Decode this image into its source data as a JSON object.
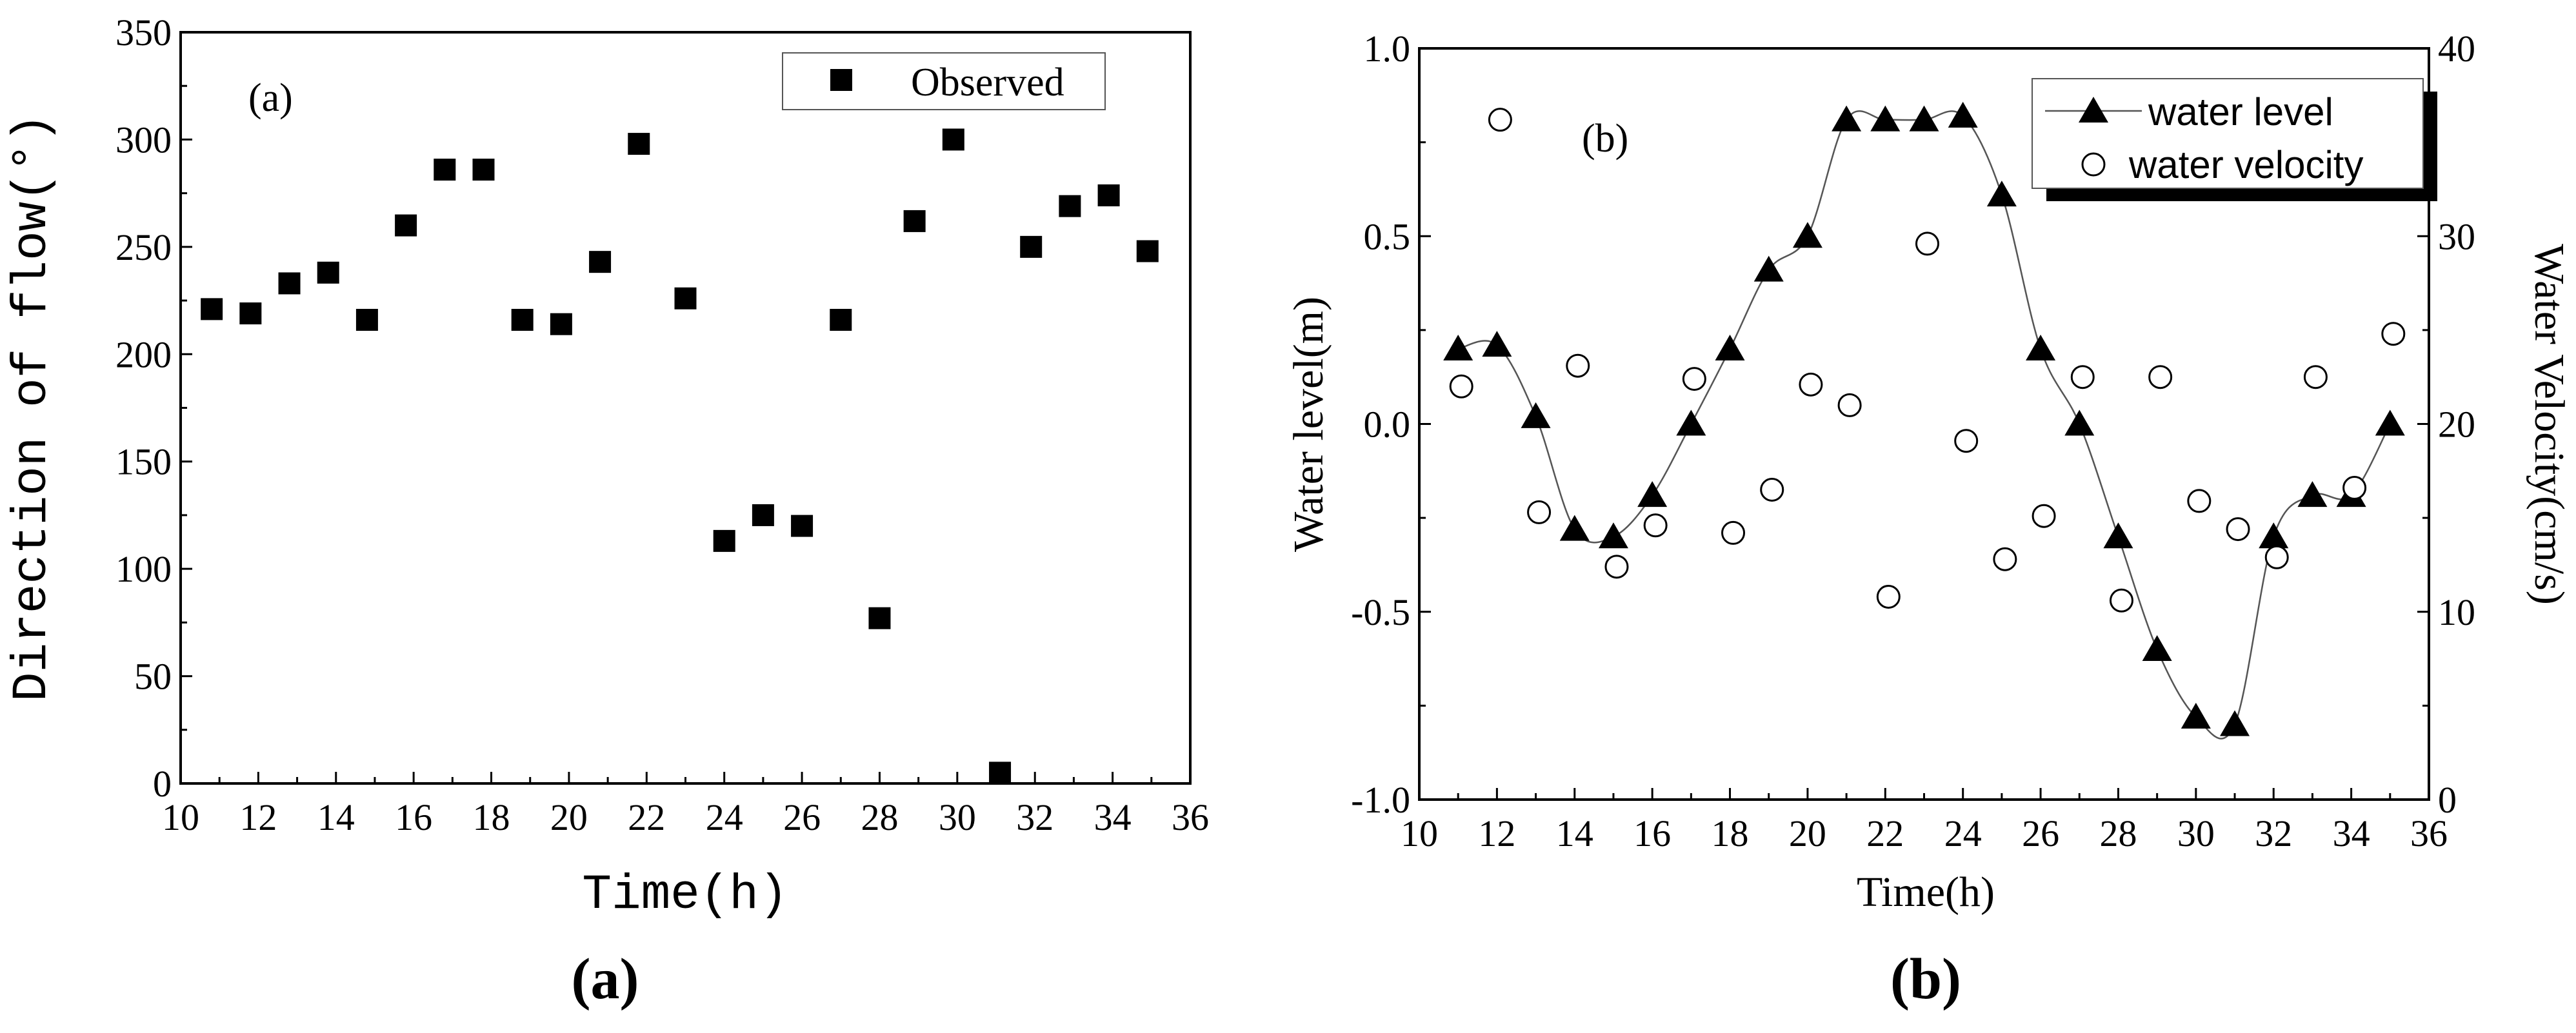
{
  "chart_data": [
    {
      "type": "scatter",
      "panel_label": "(a)",
      "caption": "(a)",
      "xlabel": "Time(h)",
      "ylabel": "Direction of flow(°)",
      "xlim": [
        10,
        36
      ],
      "ylim": [
        0,
        350
      ],
      "xticks": [
        "10",
        "12",
        "14",
        "16",
        "18",
        "20",
        "22",
        "24",
        "26",
        "28",
        "30",
        "32",
        "34",
        "36"
      ],
      "yticks": [
        "0",
        "50",
        "100",
        "150",
        "200",
        "250",
        "300",
        "350"
      ],
      "legend": "top-right",
      "series": [
        {
          "name": "Observed",
          "marker": "filled-square",
          "x": [
            10.8,
            11.8,
            12.8,
            13.8,
            14.8,
            15.8,
            16.8,
            17.8,
            18.8,
            19.8,
            20.8,
            21.8,
            23.0,
            24.0,
            25.0,
            26.0,
            27.0,
            28.0,
            28.9,
            29.9,
            31.1,
            31.9,
            32.9,
            33.9,
            34.9
          ],
          "y": [
            221,
            219,
            233,
            238,
            216,
            260,
            286,
            286,
            216,
            214,
            243,
            298,
            226,
            113,
            125,
            120,
            216,
            77,
            262,
            300,
            5,
            250,
            269,
            274,
            248
          ]
        }
      ]
    },
    {
      "type": "line",
      "panel_label": "(b)",
      "caption": "(b)",
      "xlabel": "Time(h)",
      "ylabel": "Water level(m)",
      "y2label": "Water Velocity(cm/s)",
      "xlim": [
        10,
        36
      ],
      "ylim": [
        -1.0,
        1.0
      ],
      "y2lim": [
        0,
        40
      ],
      "xticks": [
        "10",
        "12",
        "14",
        "16",
        "18",
        "20",
        "22",
        "24",
        "26",
        "28",
        "30",
        "32",
        "34",
        "36"
      ],
      "yticks": [
        "-1.0",
        "-0.5",
        "0.0",
        "0.5",
        "1.0"
      ],
      "y2ticks": [
        "0",
        "10",
        "20",
        "30",
        "40"
      ],
      "legend": "top-right",
      "series": [
        {
          "name": "water level",
          "marker": "filled-triangle",
          "axis": "left",
          "x": [
            11,
            12,
            13,
            14,
            15,
            16,
            17,
            18,
            19,
            20,
            21,
            22,
            23,
            24,
            25,
            26,
            27,
            28,
            29,
            30,
            31,
            32,
            33,
            34,
            35
          ],
          "y": [
            0.2,
            0.21,
            0.02,
            -0.28,
            -0.3,
            -0.19,
            0.0,
            0.2,
            0.41,
            0.5,
            0.81,
            0.81,
            0.81,
            0.82,
            0.61,
            0.2,
            0.0,
            -0.3,
            -0.6,
            -0.78,
            -0.8,
            -0.3,
            -0.19,
            -0.19,
            0.0
          ]
        },
        {
          "name": "water velocity",
          "marker": "open-circle",
          "axis": "right",
          "x": [
            11,
            12,
            13,
            14,
            15,
            16,
            17,
            18,
            19,
            20,
            21,
            22,
            23,
            24,
            25,
            26,
            27,
            28,
            29,
            30,
            31,
            32,
            33,
            34,
            35
          ],
          "y": [
            22,
            36.2,
            15.3,
            23.1,
            12.4,
            14.6,
            22.4,
            14.2,
            16.5,
            22.1,
            21,
            10.8,
            29.6,
            19.1,
            12.8,
            15.1,
            22.5,
            10.6,
            22.5,
            15.9,
            14.4,
            12.9,
            22.5,
            16.6,
            24.8
          ]
        }
      ]
    }
  ]
}
